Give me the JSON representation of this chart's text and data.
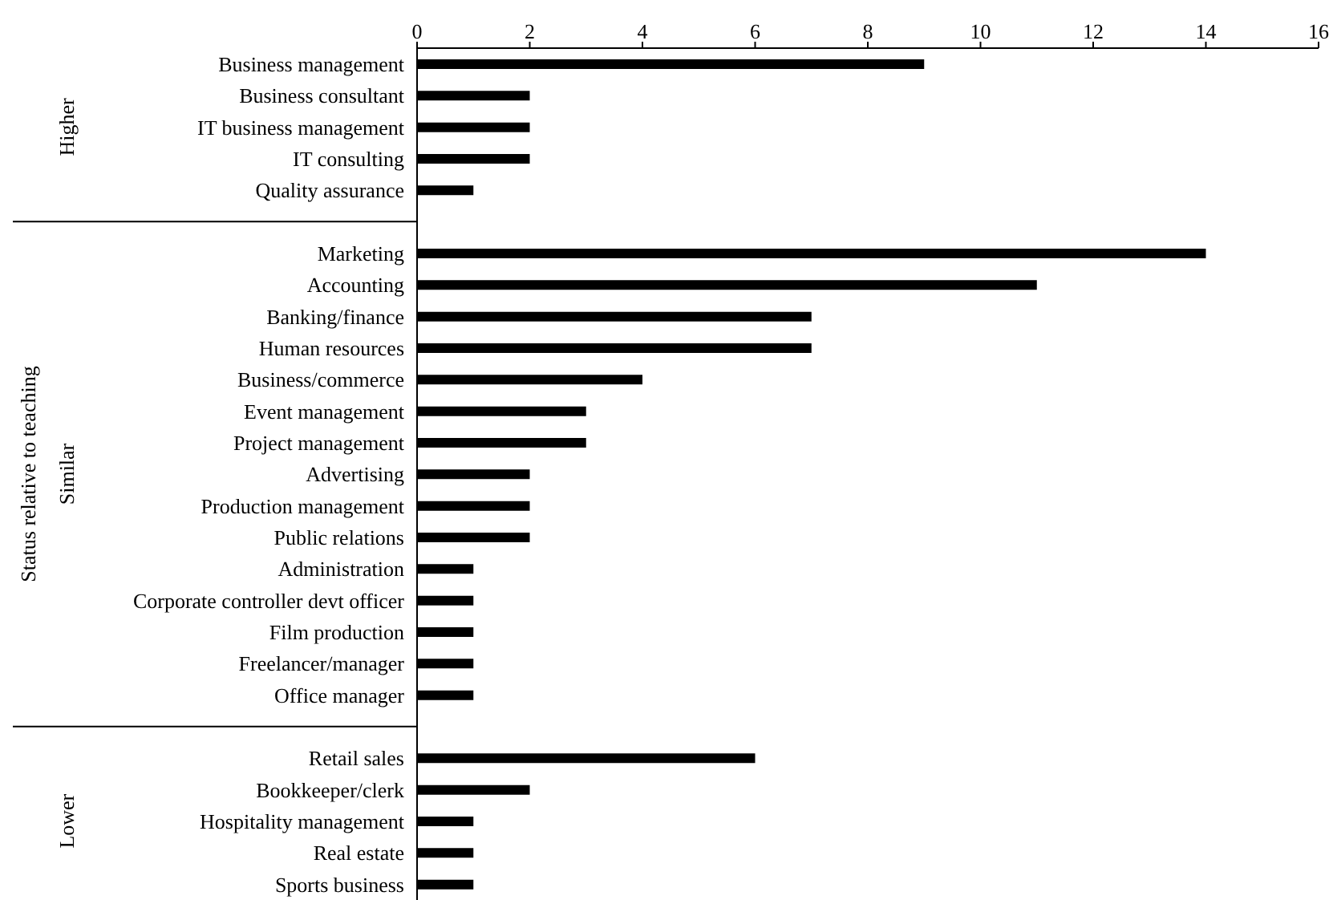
{
  "chart_data": {
    "type": "bar",
    "orientation": "horizontal",
    "ylabel": "Status relative to teaching",
    "categories": [
      "Business management",
      "Business consultant",
      "IT business management",
      "IT consulting",
      "Quality assurance",
      null,
      "Marketing",
      "Accounting",
      "Banking/finance",
      "Human resources",
      "Business/commerce",
      "Event management",
      "Project management",
      "Advertising",
      "Production management",
      "Public relations",
      "Administration",
      "Corporate controller devt officer",
      "Film production",
      "Freelancer/manager",
      "Office manager",
      null,
      "Retail sales",
      "Bookkeeper/clerk",
      "Hospitality management",
      "Real estate",
      "Sports business"
    ],
    "values": [
      9,
      2,
      2,
      2,
      1,
      null,
      14,
      11,
      7,
      7,
      4,
      3,
      3,
      2,
      2,
      2,
      1,
      1,
      1,
      1,
      1,
      null,
      6,
      2,
      1,
      1,
      1
    ],
    "color": "#000000",
    "xlim": [
      0,
      16
    ],
    "xticks": [
      0,
      2,
      4,
      6,
      8,
      10,
      12,
      14,
      16
    ],
    "annotations": [
      "Higher",
      "Similar",
      "Lower"
    ]
  }
}
